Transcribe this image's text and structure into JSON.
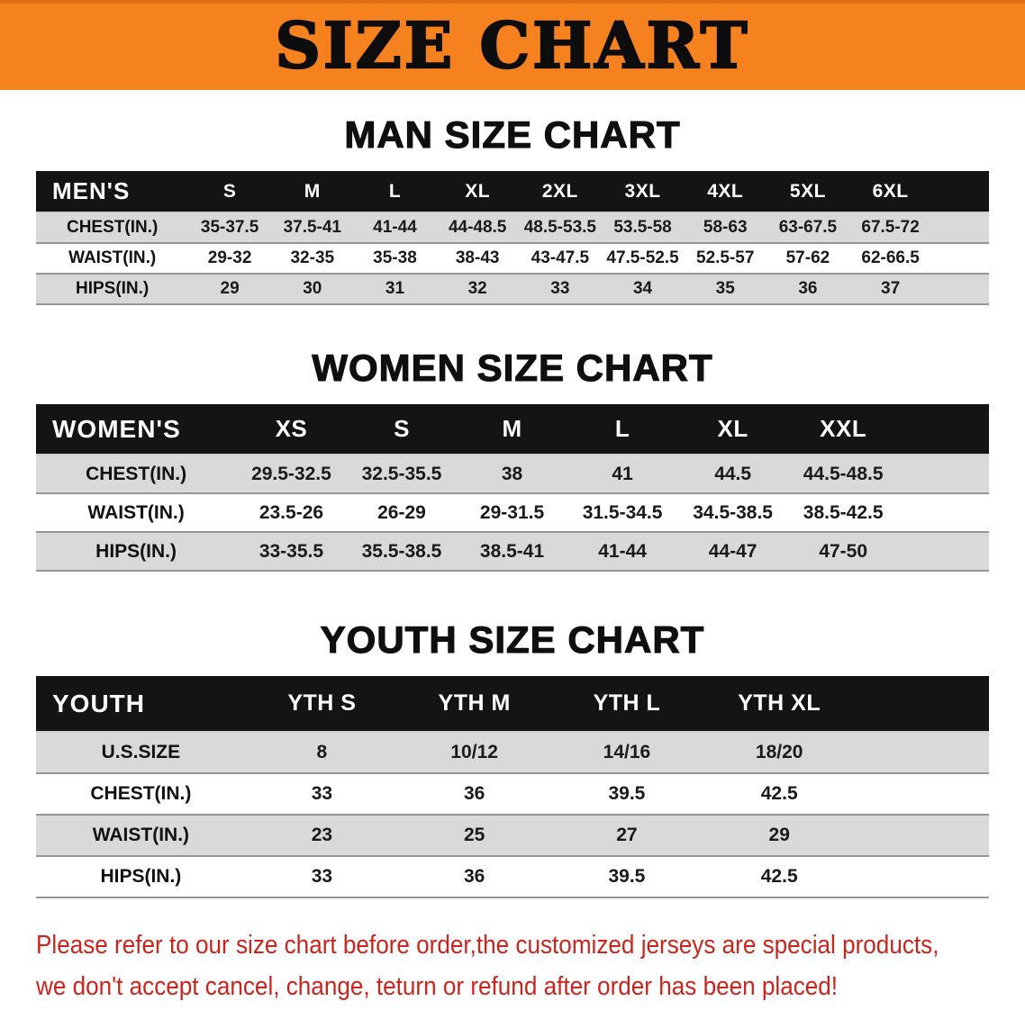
{
  "banner": {
    "title": "SIZE CHART"
  },
  "sections": [
    {
      "heading": "MAN SIZE CHART",
      "table": {
        "header_label": "MEN'S",
        "columns": [
          "S",
          "M",
          "L",
          "XL",
          "2XL",
          "3XL",
          "4XL",
          "5XL",
          "6XL"
        ],
        "rows": [
          {
            "label": "CHEST(IN.)",
            "values": [
              "35-37.5",
              "37.5-41",
              "41-44",
              "44-48.5",
              "48.5-53.5",
              "53.5-58",
              "58-63",
              "63-67.5",
              "67.5-72"
            ]
          },
          {
            "label": "WAIST(IN.)",
            "values": [
              "29-32",
              "32-35",
              "35-38",
              "38-43",
              "43-47.5",
              "47.5-52.5",
              "52.5-57",
              "57-62",
              "62-66.5"
            ]
          },
          {
            "label": "HIPS(IN.)",
            "values": [
              "29",
              "30",
              "31",
              "32",
              "33",
              "34",
              "35",
              "36",
              "37"
            ]
          }
        ]
      }
    },
    {
      "heading": "WOMEN SIZE CHART",
      "table": {
        "header_label": "WOMEN'S",
        "columns": [
          "XS",
          "S",
          "M",
          "L",
          "XL",
          "XXL"
        ],
        "rows": [
          {
            "label": "CHEST(IN.)",
            "values": [
              "29.5-32.5",
              "32.5-35.5",
              "38",
              "41",
              "44.5",
              "44.5-48.5"
            ]
          },
          {
            "label": "WAIST(IN.)",
            "values": [
              "23.5-26",
              "26-29",
              "29-31.5",
              "31.5-34.5",
              "34.5-38.5",
              "38.5-42.5"
            ]
          },
          {
            "label": "HIPS(IN.)",
            "values": [
              "33-35.5",
              "35.5-38.5",
              "38.5-41",
              "41-44",
              "44-47",
              "47-50"
            ]
          }
        ]
      }
    },
    {
      "heading": "YOUTH SIZE CHART",
      "table": {
        "header_label": "YOUTH",
        "columns": [
          "YTH S",
          "YTH M",
          "YTH L",
          "YTH XL"
        ],
        "rows": [
          {
            "label": "U.S.SIZE",
            "values": [
              "8",
              "10/12",
              "14/16",
              "18/20"
            ]
          },
          {
            "label": "CHEST(IN.)",
            "values": [
              "33",
              "36",
              "39.5",
              "42.5"
            ]
          },
          {
            "label": "WAIST(IN.)",
            "values": [
              "23",
              "25",
              "27",
              "29"
            ]
          },
          {
            "label": "HIPS(IN.)",
            "values": [
              "33",
              "36",
              "39.5",
              "42.5"
            ]
          }
        ]
      }
    }
  ],
  "footer_note": {
    "lines": [
      "Please refer to our size chart before order,the customized jerseys are special products,",
      "we don't accept cancel, change, teturn or refund after order has been placed!"
    ]
  },
  "colors": {
    "banner_bg": "#f5821f",
    "table_header_bg": "#141414",
    "row_alt_bg": "#d9d9d9",
    "note_red": "#c9251c"
  }
}
